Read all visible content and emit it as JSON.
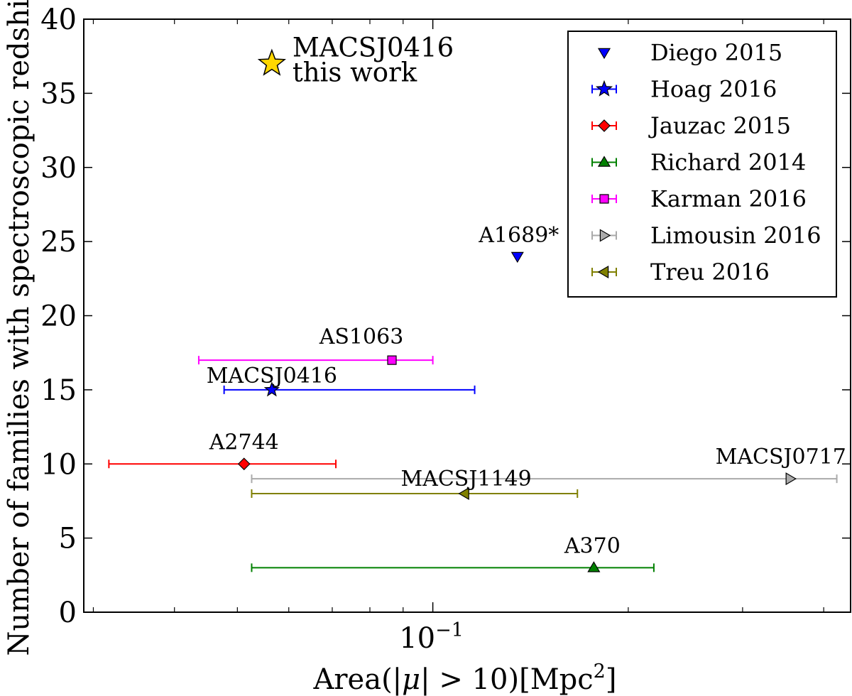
{
  "chart_data": {
    "type": "scatter",
    "title": "",
    "xlabel": "Area(|μ| > 10)[Mpc²]",
    "ylabel": "Number of families with spectroscopic redshift",
    "xscale": "log",
    "xlim": [
      0.029,
      0.44
    ],
    "ylim": [
      0,
      40
    ],
    "yticks": [
      0,
      5,
      10,
      15,
      20,
      25,
      30,
      35,
      40
    ],
    "yticklabels": [
      "0",
      "5",
      "10",
      "15",
      "20",
      "25",
      "30",
      "35",
      "40"
    ],
    "xmajor_ticks": [
      {
        "value": 0.1,
        "base": "10",
        "exp": "−1"
      }
    ],
    "xminor_ticks": [
      0.03,
      0.04,
      0.05,
      0.06,
      0.07,
      0.08,
      0.09,
      0.2,
      0.3,
      0.4
    ],
    "grid": false,
    "legend_position": "top-right",
    "series": [
      {
        "name": "Diego 2015",
        "color": "#0000ff",
        "marker": "triangle-down",
        "points": [
          {
            "cluster": "A1689*",
            "x": 0.135,
            "y": 24,
            "xerr_low": null,
            "xerr_high": null
          }
        ]
      },
      {
        "name": "Hoag 2016",
        "color": "#0000ff",
        "marker": "star",
        "points": [
          {
            "cluster": "MACSJ0416",
            "x": 0.0565,
            "y": 15,
            "xerr_low": 0.0477,
            "xerr_high": 0.116
          }
        ]
      },
      {
        "name": "Jauzac 2015",
        "color": "#ff0000",
        "marker": "diamond",
        "points": [
          {
            "cluster": "A2744",
            "x": 0.0512,
            "y": 10,
            "xerr_low": 0.0317,
            "xerr_high": 0.0709
          }
        ]
      },
      {
        "name": "Richard 2014",
        "color": "#008000",
        "marker": "triangle-up",
        "points": [
          {
            "cluster": "A370",
            "x": 0.177,
            "y": 3,
            "xerr_low": 0.0526,
            "xerr_high": 0.219
          }
        ]
      },
      {
        "name": "Karman 2016",
        "color": "#ff00ff",
        "marker": "square",
        "points": [
          {
            "cluster": "AS1063",
            "x": 0.0865,
            "y": 17,
            "xerr_low": 0.0436,
            "xerr_high": 0.1
          }
        ]
      },
      {
        "name": "Limousin 2016",
        "color": "#aaaaaa",
        "marker": "triangle-right",
        "points": [
          {
            "cluster": "MACSJ0717",
            "x": 0.355,
            "y": 9,
            "xerr_low": 0.0526,
            "xerr_high": 0.419
          }
        ]
      },
      {
        "name": "Treu 2016",
        "color": "#808000",
        "marker": "triangle-left",
        "points": [
          {
            "cluster": "MACSJ1149",
            "x": 0.112,
            "y": 8,
            "xerr_low": 0.0526,
            "xerr_high": 0.167
          }
        ]
      }
    ],
    "highlight": {
      "cluster": "MACSJ0416",
      "note": "this work",
      "x": 0.0565,
      "y": 37,
      "color": "#ffd700",
      "marker": "star"
    },
    "annotations": [
      {
        "text": "A1689*",
        "x": 0.135,
        "y": 24
      },
      {
        "text": "MACSJ0416",
        "x": 0.0565,
        "y": 15
      },
      {
        "text": "A2744",
        "x": 0.0512,
        "y": 10
      },
      {
        "text": "A370",
        "x": 0.177,
        "y": 3
      },
      {
        "text": "AS1063",
        "x": 0.0865,
        "y": 17
      },
      {
        "text": "MACSJ0717",
        "x": 0.355,
        "y": 9
      },
      {
        "text": "MACSJ1149",
        "x": 0.112,
        "y": 8
      }
    ]
  }
}
